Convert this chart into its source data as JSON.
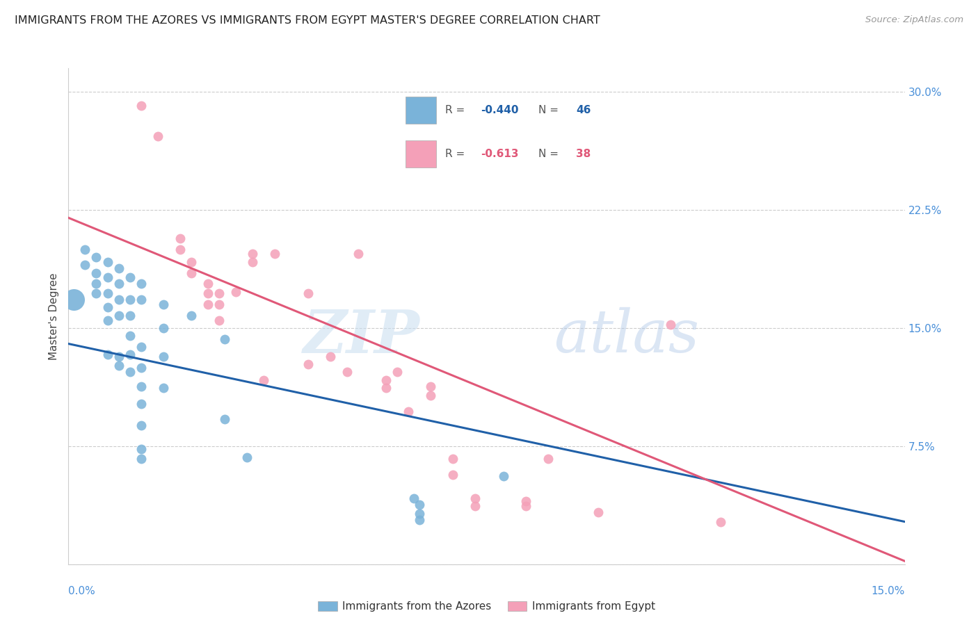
{
  "title": "IMMIGRANTS FROM THE AZORES VS IMMIGRANTS FROM EGYPT MASTER'S DEGREE CORRELATION CHART",
  "source": "Source: ZipAtlas.com",
  "ylabel": "Master's Degree",
  "ytick_labels": [
    "",
    "7.5%",
    "15.0%",
    "22.5%",
    "30.0%"
  ],
  "ytick_values": [
    0.0,
    0.075,
    0.15,
    0.225,
    0.3
  ],
  "xmin": 0.0,
  "xmax": 0.15,
  "ymin": 0.0,
  "ymax": 0.315,
  "blue_color": "#7ab3d9",
  "pink_color": "#f4a0b8",
  "line_blue": "#2060a8",
  "line_pink": "#e05878",
  "legend_R_blue": "-0.440",
  "legend_N_blue": "46",
  "legend_R_pink": "-0.613",
  "legend_N_pink": "38",
  "watermark_zip": "ZIP",
  "watermark_atlas": "atlas",
  "label_blue": "Immigrants from the Azores",
  "label_pink": "Immigrants from Egypt",
  "blue_points": [
    [
      0.003,
      0.2
    ],
    [
      0.003,
      0.19
    ],
    [
      0.005,
      0.195
    ],
    [
      0.005,
      0.185
    ],
    [
      0.005,
      0.178
    ],
    [
      0.005,
      0.172
    ],
    [
      0.007,
      0.192
    ],
    [
      0.007,
      0.182
    ],
    [
      0.007,
      0.172
    ],
    [
      0.007,
      0.163
    ],
    [
      0.007,
      0.155
    ],
    [
      0.007,
      0.133
    ],
    [
      0.009,
      0.188
    ],
    [
      0.009,
      0.178
    ],
    [
      0.009,
      0.168
    ],
    [
      0.009,
      0.158
    ],
    [
      0.009,
      0.132
    ],
    [
      0.009,
      0.126
    ],
    [
      0.011,
      0.182
    ],
    [
      0.011,
      0.168
    ],
    [
      0.011,
      0.158
    ],
    [
      0.011,
      0.145
    ],
    [
      0.011,
      0.133
    ],
    [
      0.011,
      0.122
    ],
    [
      0.013,
      0.178
    ],
    [
      0.013,
      0.168
    ],
    [
      0.013,
      0.138
    ],
    [
      0.013,
      0.125
    ],
    [
      0.013,
      0.113
    ],
    [
      0.013,
      0.102
    ],
    [
      0.013,
      0.088
    ],
    [
      0.013,
      0.073
    ],
    [
      0.013,
      0.067
    ],
    [
      0.017,
      0.165
    ],
    [
      0.017,
      0.15
    ],
    [
      0.017,
      0.132
    ],
    [
      0.017,
      0.112
    ],
    [
      0.022,
      0.158
    ],
    [
      0.028,
      0.143
    ],
    [
      0.028,
      0.092
    ],
    [
      0.032,
      0.068
    ],
    [
      0.062,
      0.042
    ],
    [
      0.063,
      0.038
    ],
    [
      0.078,
      0.056
    ],
    [
      0.063,
      0.032
    ],
    [
      0.063,
      0.028
    ]
  ],
  "pink_points": [
    [
      0.013,
      0.291
    ],
    [
      0.016,
      0.272
    ],
    [
      0.02,
      0.207
    ],
    [
      0.02,
      0.2
    ],
    [
      0.022,
      0.192
    ],
    [
      0.022,
      0.185
    ],
    [
      0.025,
      0.178
    ],
    [
      0.025,
      0.172
    ],
    [
      0.025,
      0.165
    ],
    [
      0.027,
      0.172
    ],
    [
      0.027,
      0.165
    ],
    [
      0.027,
      0.155
    ],
    [
      0.03,
      0.173
    ],
    [
      0.033,
      0.197
    ],
    [
      0.033,
      0.192
    ],
    [
      0.035,
      0.117
    ],
    [
      0.037,
      0.197
    ],
    [
      0.043,
      0.172
    ],
    [
      0.043,
      0.127
    ],
    [
      0.047,
      0.132
    ],
    [
      0.05,
      0.122
    ],
    [
      0.052,
      0.197
    ],
    [
      0.057,
      0.117
    ],
    [
      0.057,
      0.112
    ],
    [
      0.059,
      0.122
    ],
    [
      0.061,
      0.097
    ],
    [
      0.065,
      0.113
    ],
    [
      0.065,
      0.107
    ],
    [
      0.069,
      0.067
    ],
    [
      0.069,
      0.057
    ],
    [
      0.073,
      0.042
    ],
    [
      0.073,
      0.037
    ],
    [
      0.082,
      0.04
    ],
    [
      0.082,
      0.037
    ],
    [
      0.086,
      0.067
    ],
    [
      0.095,
      0.033
    ],
    [
      0.108,
      0.152
    ],
    [
      0.117,
      0.027
    ]
  ],
  "blue_line": [
    [
      0.0,
      0.14
    ],
    [
      0.15,
      0.027
    ]
  ],
  "pink_line": [
    [
      0.0,
      0.22
    ],
    [
      0.15,
      0.002
    ]
  ]
}
